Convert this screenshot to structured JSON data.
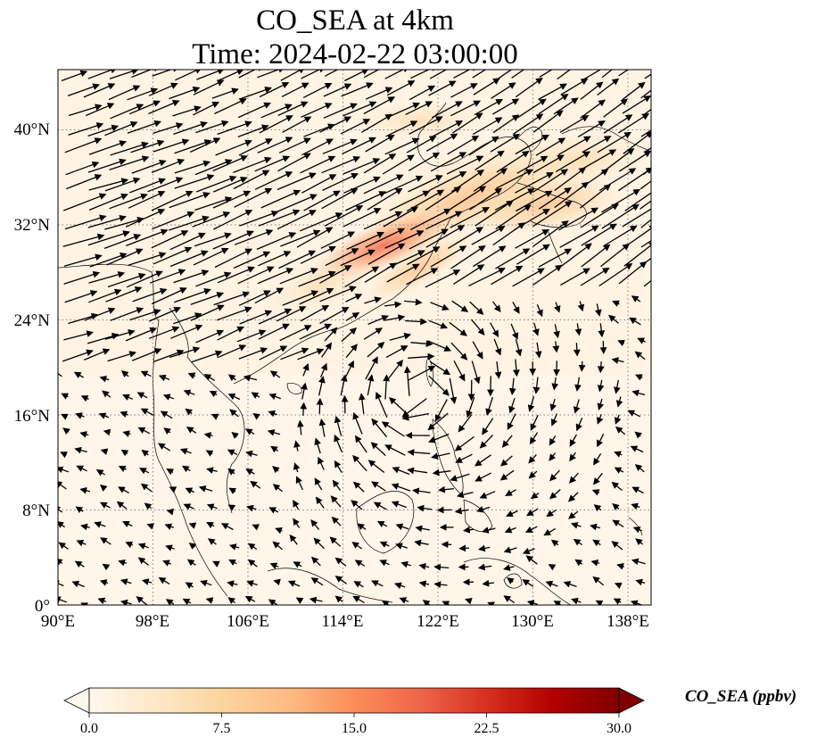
{
  "title": {
    "line1": "CO_SEA at 4km",
    "line2": "Time: 2024-02-22 03:00:00"
  },
  "map": {
    "lon_range": [
      90,
      140
    ],
    "lat_range": [
      0,
      45
    ],
    "lon_ticks": [
      "90°E",
      "98°E",
      "106°E",
      "114°E",
      "122°E",
      "130°E",
      "138°E"
    ],
    "lat_ticks": [
      "0°",
      "8°N",
      "16°N",
      "24°N",
      "32°N",
      "40°N"
    ],
    "gridlines": true,
    "coastlines": true,
    "vectors": "wind arrows",
    "colormap": "OrRd"
  },
  "colorbar": {
    "label": "CO_SEA (ppbv)",
    "ticks": [
      "0.0",
      "7.5",
      "15.0",
      "22.5",
      "30.0"
    ],
    "range": [
      0,
      30
    ],
    "extend": "both",
    "colors": [
      "#fff7ec",
      "#fee8c8",
      "#fdd49e",
      "#fdbb84",
      "#fc8d59",
      "#ef6548",
      "#d7301f",
      "#b30000",
      "#7f0000"
    ]
  }
}
